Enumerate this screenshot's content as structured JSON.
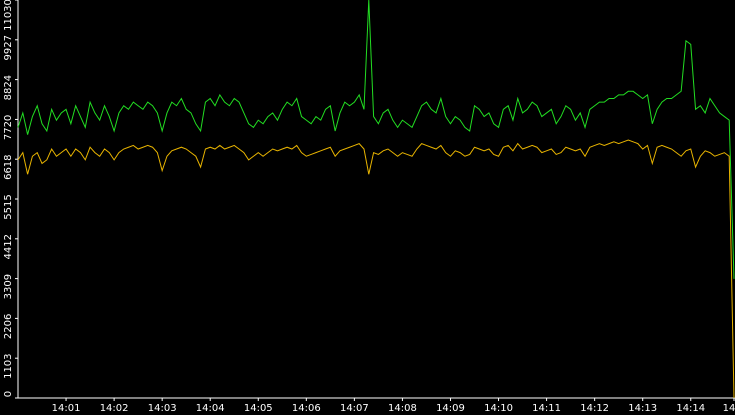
{
  "chart_data": {
    "type": "line",
    "categories": [
      null,
      null,
      null,
      null,
      null,
      null,
      null,
      null,
      null,
      null,
      "14:01",
      null,
      null,
      null,
      null,
      null,
      null,
      null,
      null,
      null,
      "14:02",
      null,
      null,
      null,
      null,
      null,
      null,
      null,
      null,
      null,
      "14:03",
      null,
      null,
      null,
      null,
      null,
      null,
      null,
      null,
      null,
      "14:04",
      null,
      null,
      null,
      null,
      null,
      null,
      null,
      null,
      null,
      "14:05",
      null,
      null,
      null,
      null,
      null,
      null,
      null,
      null,
      null,
      "14:06",
      null,
      null,
      null,
      null,
      null,
      null,
      null,
      null,
      null,
      "14:07",
      null,
      null,
      null,
      null,
      null,
      null,
      null,
      null,
      null,
      "14:08",
      null,
      null,
      null,
      null,
      null,
      null,
      null,
      null,
      null,
      "14:09",
      null,
      null,
      null,
      null,
      null,
      null,
      null,
      null,
      null,
      "14:10",
      null,
      null,
      null,
      null,
      null,
      null,
      null,
      null,
      null,
      "14:11",
      null,
      null,
      null,
      null,
      null,
      null,
      null,
      null,
      null,
      "14:12",
      null,
      null,
      null,
      null,
      null,
      null,
      null,
      null,
      null,
      "14:13",
      null,
      null,
      null,
      null,
      null,
      null,
      null,
      null,
      null,
      "14:14",
      null,
      null,
      null,
      null,
      null,
      null,
      null,
      null,
      "14"
    ],
    "series": [
      {
        "color": "#22dd22",
        "values": [
          7500,
          7900,
          7300,
          7800,
          8100,
          7600,
          7400,
          8000,
          7700,
          7900,
          8000,
          7600,
          8100,
          7800,
          7500,
          8200,
          7900,
          7700,
          8100,
          7800,
          7400,
          7900,
          8100,
          8000,
          8200,
          8100,
          8000,
          8200,
          8100,
          7900,
          7400,
          7900,
          8200,
          8100,
          8300,
          8000,
          7900,
          7600,
          7400,
          8200,
          8300,
          8100,
          8400,
          8200,
          8100,
          8300,
          8200,
          7900,
          7600,
          7500,
          7700,
          7600,
          7800,
          7900,
          7700,
          8000,
          8200,
          8100,
          8300,
          7800,
          7700,
          7600,
          7800,
          7700,
          8000,
          8100,
          7400,
          7900,
          8200,
          8100,
          8200,
          8400,
          8000,
          11030,
          7800,
          7600,
          7900,
          8000,
          7700,
          7500,
          7700,
          7600,
          7500,
          7800,
          8100,
          8200,
          8000,
          7900,
          8300,
          7800,
          7600,
          7800,
          7700,
          7500,
          7400,
          8100,
          8000,
          7800,
          7900,
          7600,
          7500,
          8000,
          8100,
          7700,
          8300,
          7900,
          8000,
          8200,
          8100,
          7800,
          7900,
          8000,
          7600,
          7800,
          8100,
          8000,
          7700,
          7900,
          7500,
          8000,
          8100,
          8200,
          8200,
          8300,
          8300,
          8400,
          8400,
          8500,
          8500,
          8400,
          8300,
          8400,
          7600,
          8000,
          8200,
          8300,
          8300,
          8400,
          8500,
          9900,
          9800,
          8000,
          8100,
          7900,
          8300,
          8100,
          7900,
          7800,
          7700,
          3300
        ]
      },
      {
        "color": "#e8b400",
        "values": [
          6600,
          6800,
          6200,
          6700,
          6800,
          6500,
          6600,
          6900,
          6700,
          6800,
          6900,
          6700,
          6900,
          6800,
          6600,
          6950,
          6800,
          6700,
          6900,
          6800,
          6600,
          6800,
          6900,
          6950,
          7000,
          6900,
          6950,
          7000,
          6950,
          6800,
          6300,
          6700,
          6850,
          6900,
          6950,
          6900,
          6800,
          6700,
          6400,
          6900,
          6950,
          6900,
          7000,
          6900,
          6950,
          7000,
          6900,
          6800,
          6600,
          6700,
          6800,
          6700,
          6800,
          6900,
          6850,
          6900,
          6950,
          6900,
          7000,
          6800,
          6700,
          6750,
          6800,
          6850,
          6900,
          6950,
          6700,
          6850,
          6900,
          6950,
          7000,
          7050,
          6900,
          6200,
          6800,
          6750,
          6850,
          6900,
          6800,
          6700,
          6800,
          6750,
          6700,
          6900,
          7050,
          7000,
          6950,
          6900,
          7000,
          6800,
          6700,
          6850,
          6800,
          6700,
          6750,
          6950,
          6900,
          6850,
          6900,
          6750,
          6700,
          6950,
          7000,
          6850,
          7050,
          6900,
          6950,
          7000,
          6950,
          6800,
          6850,
          6900,
          6750,
          6800,
          6950,
          6900,
          6850,
          6900,
          6700,
          6950,
          7000,
          7050,
          7000,
          7050,
          7100,
          7050,
          7100,
          7150,
          7100,
          7050,
          6900,
          7000,
          6500,
          6950,
          7000,
          6950,
          6900,
          6800,
          6700,
          6850,
          6900,
          6400,
          6700,
          6850,
          6800,
          6700,
          6750,
          6800,
          6700,
          0
        ]
      }
    ],
    "ylim": [
      0,
      11030
    ],
    "yticks": [
      0,
      1103,
      2206,
      3309,
      4412,
      5515,
      6618,
      7720,
      8824,
      9927,
      11030
    ]
  }
}
